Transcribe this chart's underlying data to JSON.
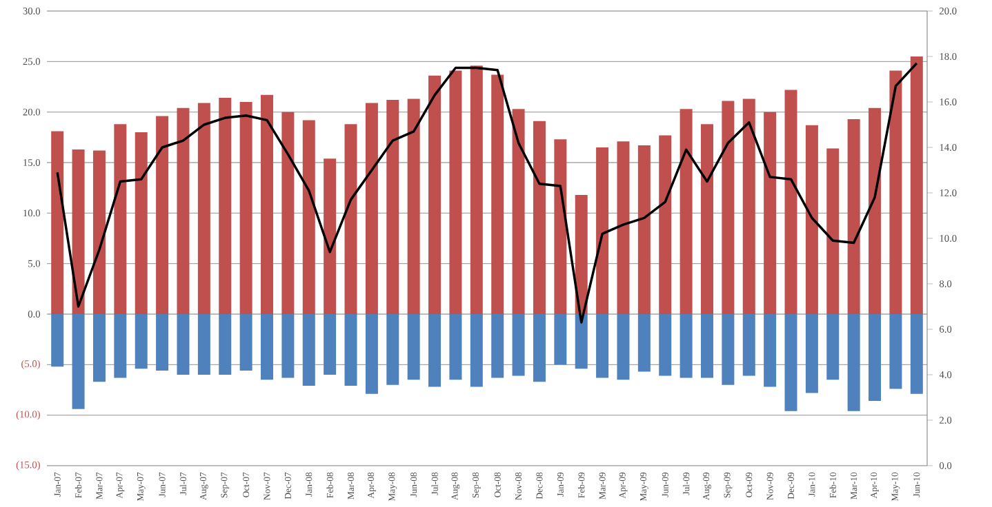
{
  "chart_data": {
    "type": "bar",
    "stacked": true,
    "grid": "y",
    "categories": [
      "Jan-07",
      "Feb-07",
      "Mar-07",
      "Apr-07",
      "May-07",
      "Jun-07",
      "Jul-07",
      "Aug-07",
      "Sep-07",
      "Oct-07",
      "Nov-07",
      "Dec-07",
      "Jan-08",
      "Feb-08",
      "Mar-08",
      "Apr-08",
      "May-08",
      "Jun-08",
      "Jul-08",
      "Aug-08",
      "Sep-08",
      "Oct-08",
      "Nov-08",
      "Dec-08",
      "Jan-09",
      "Feb-09",
      "Mar-09",
      "Apr-09",
      "May-09",
      "Jun-09",
      "Jul-09",
      "Aug-09",
      "Sep-09",
      "Oct-09",
      "Nov-09",
      "Dec-09",
      "Jan-10",
      "Feb-10",
      "Mar-10",
      "Apr-10",
      "May-10",
      "Jun-10"
    ],
    "series": [
      {
        "color": "#c0504d",
        "values": [
          18.1,
          16.3,
          16.2,
          18.8,
          18.0,
          19.6,
          20.4,
          20.9,
          21.4,
          21.0,
          21.7,
          20.0,
          19.2,
          15.4,
          18.8,
          20.9,
          21.2,
          21.3,
          23.6,
          24.1,
          24.6,
          23.7,
          20.3,
          19.1,
          17.3,
          11.8,
          16.5,
          17.1,
          16.7,
          17.7,
          20.3,
          18.8,
          21.1,
          21.3,
          20.0,
          22.2,
          18.7,
          16.4,
          19.3,
          20.4,
          24.1,
          25.5
        ]
      },
      {
        "color": "#4f81bd",
        "values": [
          -5.2,
          -9.4,
          -6.7,
          -6.3,
          -5.4,
          -5.6,
          -6.0,
          -6.0,
          -6.0,
          -5.6,
          -6.5,
          -6.3,
          -7.1,
          -6.0,
          -7.1,
          -7.9,
          -7.0,
          -6.5,
          -7.2,
          -6.5,
          -7.2,
          -6.3,
          -6.1,
          -6.7,
          -5.0,
          -5.4,
          -6.3,
          -6.5,
          -5.7,
          -6.1,
          -6.3,
          -6.3,
          -7.0,
          -6.1,
          -7.2,
          -9.6,
          -7.8,
          -6.5,
          -9.6,
          -8.6,
          -7.4,
          -7.9
        ]
      },
      {
        "type": "line",
        "axis": "y2",
        "color": "#000000",
        "values": [
          12.9,
          7.0,
          9.5,
          12.5,
          12.6,
          14.0,
          14.3,
          15.0,
          15.3,
          15.4,
          15.2,
          13.7,
          12.1,
          9.4,
          11.7,
          13.0,
          14.3,
          14.7,
          16.3,
          17.5,
          17.5,
          17.4,
          14.2,
          12.4,
          12.3,
          6.3,
          10.2,
          10.6,
          10.9,
          11.6,
          13.9,
          12.5,
          14.2,
          15.1,
          12.7,
          12.6,
          10.9,
          9.9,
          9.8,
          11.8,
          16.7,
          17.7
        ]
      }
    ],
    "ylim": [
      -15,
      30
    ],
    "yticks": [
      {
        "value": -15,
        "label": "(15.0)"
      },
      {
        "value": -10,
        "label": "(10.0)"
      },
      {
        "value": -5,
        "label": "(5.0)"
      },
      {
        "value": 0,
        "label": "0.0"
      },
      {
        "value": 5,
        "label": "5.0"
      },
      {
        "value": 10,
        "label": "10.0"
      },
      {
        "value": 15,
        "label": "15.0"
      },
      {
        "value": 20,
        "label": "20.0"
      },
      {
        "value": 25,
        "label": "25.0"
      },
      {
        "value": 30,
        "label": "30.0"
      }
    ],
    "y2lim": [
      0,
      20
    ],
    "y2ticks": [
      {
        "value": 0,
        "label": "0.0"
      },
      {
        "value": 2,
        "label": "2.0"
      },
      {
        "value": 4,
        "label": "4.0"
      },
      {
        "value": 6,
        "label": "6.0"
      },
      {
        "value": 8,
        "label": "8.0"
      },
      {
        "value": 10,
        "label": "10.0"
      },
      {
        "value": 12,
        "label": "12.0"
      },
      {
        "value": 14,
        "label": "14.0"
      },
      {
        "value": 16,
        "label": "16.0"
      },
      {
        "value": 18,
        "label": "18.0"
      },
      {
        "value": 20,
        "label": "20.0"
      }
    ]
  }
}
